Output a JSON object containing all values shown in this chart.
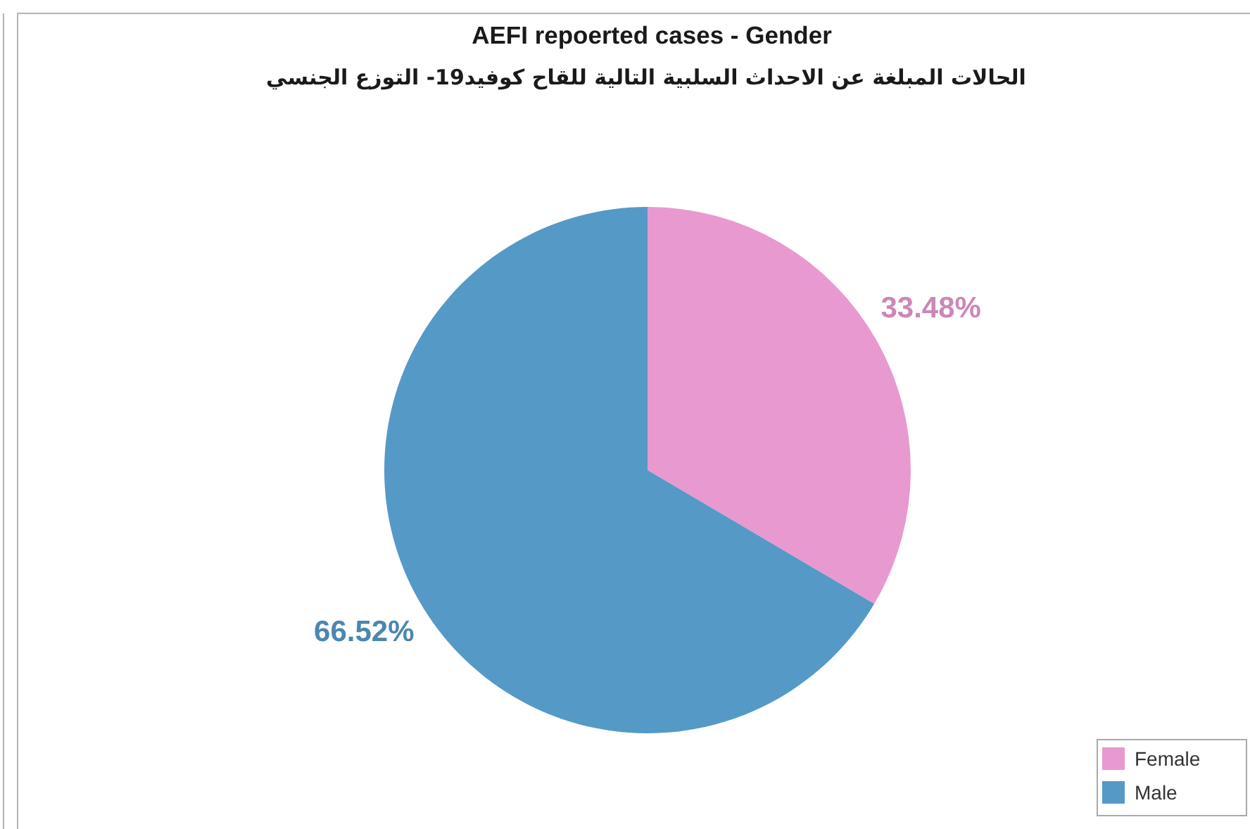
{
  "chart_data": {
    "type": "pie",
    "title": "AEFI repoerted cases - Gender",
    "subtitle": "الحالات المبلغة عن الاحداث السلبية التالية للقاح كوفيد19- التوزع الجنسي",
    "categories": [
      "Female",
      "Male"
    ],
    "values": [
      33.48,
      66.52
    ],
    "colors": [
      "#e899d0",
      "#5599c7"
    ],
    "value_labels": [
      "33.48%",
      "66.52%"
    ],
    "legend": "bottom right"
  }
}
